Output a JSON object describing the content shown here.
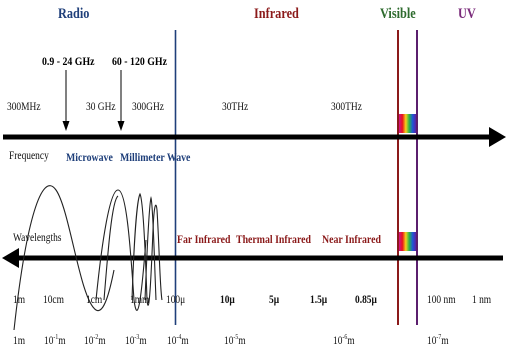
{
  "colors": {
    "radio": "#1f3f7a",
    "infrared": "#8b1a1a",
    "visible": "#2e6b2e",
    "uv": "#7a2a7a",
    "arrow": "#000000",
    "ink": "#111111"
  },
  "bands": {
    "radio": "Radio",
    "infrared": "Infrared",
    "visible": "Visible",
    "uv": "UV"
  },
  "frequency_markers": {
    "microwave_range": "0.9 - 24 GHz",
    "mmwave_range": "60 - 120 GHz"
  },
  "frequency_axis": {
    "label": "Frequency",
    "ticks": [
      "300MHz",
      "30 GHz",
      "300GHz",
      "30THz",
      "300THz"
    ]
  },
  "frequency_regions": {
    "microwave": "Microwave",
    "millimeter_wave": "Millimeter Wave"
  },
  "wavelength_axis": {
    "label": "Wavelengths"
  },
  "infrared_regions": {
    "far": "Far Infrared",
    "thermal": "Thermal Infrared",
    "near": "Near Infrared"
  },
  "wavelength_ticks": [
    "1m",
    "10cm",
    "1cm",
    "1mm",
    "100μ",
    "10μ",
    "5μ",
    "1.5μ",
    "0.85μ",
    "100 nm",
    "1 nm"
  ],
  "wavelength_powers": [
    {
      "base": "1m",
      "exp": ""
    },
    {
      "base": "10",
      "exp": "-1",
      "unit": "m"
    },
    {
      "base": "10",
      "exp": "-2",
      "unit": "m"
    },
    {
      "base": "10",
      "exp": "-3",
      "unit": "m"
    },
    {
      "base": "10",
      "exp": "-4",
      "unit": "m"
    },
    {
      "base": "10",
      "exp": "-5",
      "unit": "m"
    },
    {
      "base": "10",
      "exp": "-6",
      "unit": "m"
    },
    {
      "base": "10",
      "exp": "-7",
      "unit": "m"
    }
  ]
}
